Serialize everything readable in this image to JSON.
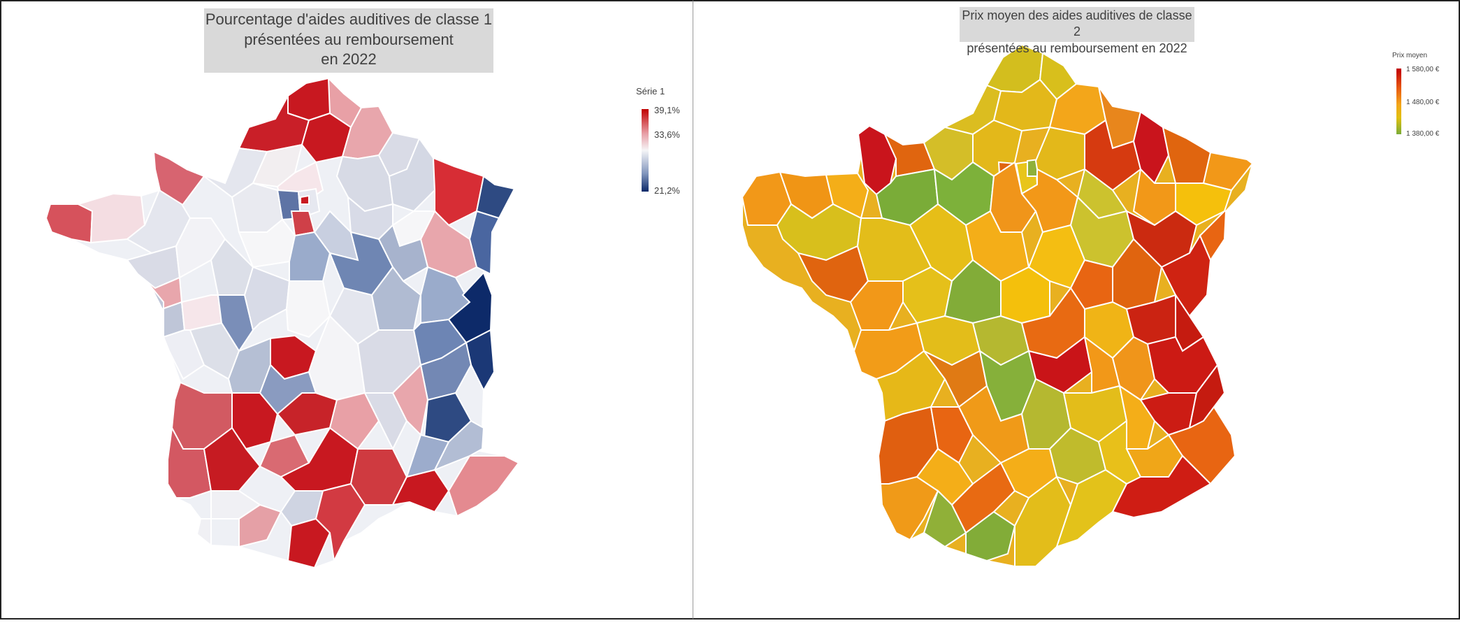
{
  "left_map": {
    "title_lines": [
      "Pourcentage d'aides auditives de classe 1",
      "présentées au remboursement",
      "en 2022"
    ],
    "legend": {
      "title": "Série 1",
      "labels": [
        "39,1%",
        "33,6%",
        "21,2%"
      ],
      "colors": {
        "max": "#c00000",
        "mid": "#f5f5f7",
        "min": "#0d2a69"
      }
    }
  },
  "right_map": {
    "title_lines": [
      "Prix moyen des aides auditives de classe 2",
      "présentées au remboursement en 2022"
    ],
    "legend": {
      "title": "Prix moyen",
      "labels": [
        "1 580,00 €",
        "1 480,00 €",
        "1 380,00 €"
      ],
      "colors": {
        "max": "#c00000",
        "mid": "#f3a61a",
        "min": "#7aac38"
      }
    }
  },
  "chart_data": [
    {
      "type": "choropleth",
      "region": "France (départements)",
      "title": "Pourcentage d'aides auditives de classe 1 présentées au remboursement en 2022",
      "series_name": "Série 1",
      "scale": {
        "max": 39.1,
        "mid": 33.6,
        "min": 21.2,
        "unit": "%"
      }
    },
    {
      "type": "choropleth",
      "region": "France (départements)",
      "title": "Prix moyen des aides auditives de classe 2 présentées au remboursement en 2022",
      "series_name": "Prix moyen",
      "scale": {
        "max": 1580.0,
        "mid": 1480.0,
        "min": 1380.0,
        "unit": "€"
      }
    }
  ]
}
